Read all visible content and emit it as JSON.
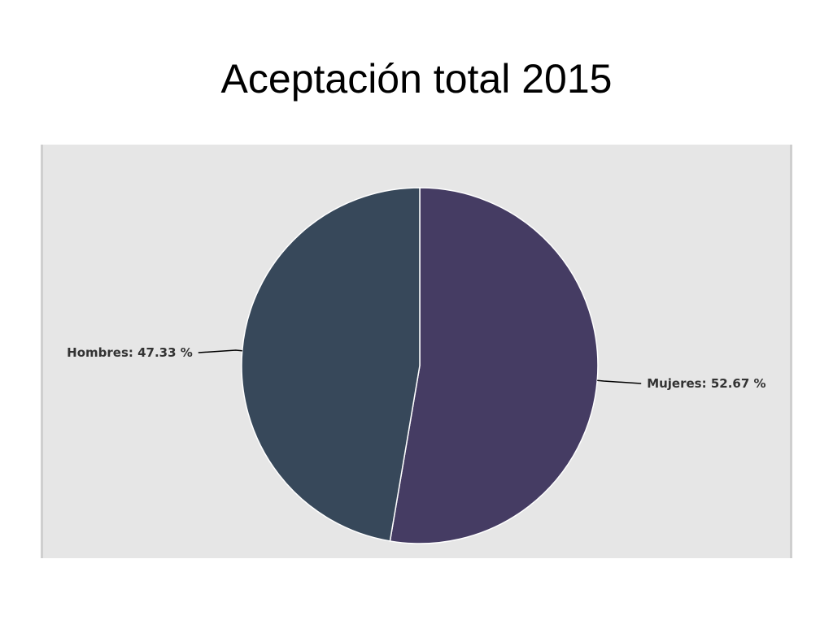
{
  "slide": {
    "title": "Aceptación total 2015"
  },
  "chart_data": {
    "type": "pie",
    "title": "",
    "start_angle_deg": 0,
    "direction": "clockwise",
    "slices": [
      {
        "name": "Mujeres",
        "value": 52.67,
        "label": "Mujeres: 52.67 %",
        "color": "#453c63"
      },
      {
        "name": "Hombres",
        "value": 47.33,
        "label": "Hombres: 47.33 %",
        "color": "#37485a"
      }
    ],
    "slice_border_color": "#ffffff",
    "background_color": "#e6e6e6",
    "label_color": "#333333",
    "leader_line_color": "#000000"
  }
}
